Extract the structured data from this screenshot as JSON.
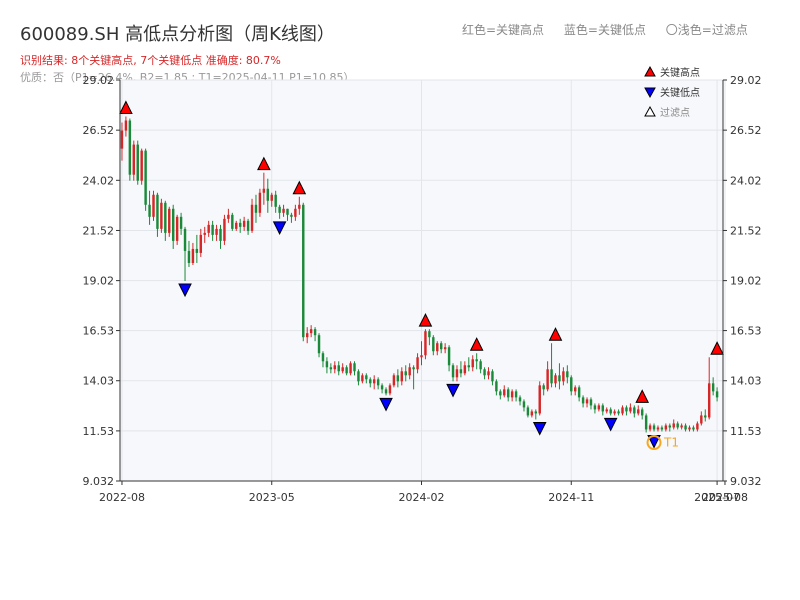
{
  "header": {
    "title": "600089.SH 高低点分析图（周K线图）",
    "legend_red": "红色=关键高点",
    "legend_blue": "蓝色=关键低点",
    "legend_light": "〇浅色=过滤点",
    "result": "识别结果: 8个关键高点, 7个关键低点   准确度: 80.7%",
    "quality": "优质：否（P1=26.4%, B2=1.85 ; T1=2025-04-11 P1=10.85）"
  },
  "colors": {
    "up": "#d62728",
    "down": "#1a8a3a",
    "high_marker": "#ff0000",
    "low_marker": "#0000ff",
    "t1": "#f5a623",
    "plot_bg": "#f7f8fb",
    "grid": "#e2e5ea"
  },
  "chart_data": {
    "type": "candlestick",
    "y_ticks": [
      "29.02",
      "26.52",
      "24.02",
      "21.52",
      "19.02",
      "16.53",
      "14.03",
      "11.53",
      "9.032"
    ],
    "ylim": [
      9.032,
      29.02
    ],
    "x_ticks": [
      "2022-08",
      "2023-05",
      "2024-02",
      "2024-11",
      "2025-07",
      "2025-08"
    ],
    "x_tick_pos": [
      0,
      38,
      76,
      114,
      151,
      153
    ],
    "inner_legend": [
      {
        "marker": "high",
        "label": "关键高点"
      },
      {
        "marker": "low",
        "label": "关键低点"
      },
      {
        "marker": "filtered",
        "label": "过滤点"
      }
    ],
    "t1_label": "T1",
    "t1_marker": {
      "index": 135,
      "value": 10.95
    },
    "high_markers": [
      {
        "index": 1,
        "value": 27.2
      },
      {
        "index": 36,
        "value": 24.4
      },
      {
        "index": 45,
        "value": 23.2
      },
      {
        "index": 77,
        "value": 16.6
      },
      {
        "index": 90,
        "value": 15.4
      },
      {
        "index": 110,
        "value": 15.9
      },
      {
        "index": 132,
        "value": 12.8
      },
      {
        "index": 151,
        "value": 15.2
      }
    ],
    "low_markers": [
      {
        "index": 16,
        "value": 19.0
      },
      {
        "index": 40,
        "value": 22.1
      },
      {
        "index": 67,
        "value": 13.3
      },
      {
        "index": 84,
        "value": 14.0
      },
      {
        "index": 106,
        "value": 12.1
      },
      {
        "index": 124,
        "value": 12.3
      },
      {
        "index": 135,
        "value": 11.45
      }
    ],
    "candles": [
      [
        25.6,
        26.5,
        25.0,
        26.9
      ],
      [
        26.5,
        27.0,
        26.2,
        27.2
      ],
      [
        27.0,
        24.3,
        24.0,
        27.1
      ],
      [
        24.3,
        25.8,
        24.0,
        26.0
      ],
      [
        25.8,
        24.0,
        23.8,
        26.0
      ],
      [
        24.0,
        25.5,
        23.8,
        25.6
      ],
      [
        25.5,
        22.8,
        22.5,
        25.6
      ],
      [
        22.8,
        22.2,
        21.8,
        23.5
      ],
      [
        22.2,
        23.3,
        22.0,
        23.5
      ],
      [
        23.3,
        21.6,
        21.2,
        23.4
      ],
      [
        21.6,
        22.9,
        21.4,
        23.1
      ],
      [
        22.9,
        21.4,
        21.0,
        23.0
      ],
      [
        21.4,
        22.6,
        21.2,
        22.7
      ],
      [
        22.6,
        21.0,
        20.6,
        22.8
      ],
      [
        21.0,
        22.2,
        20.8,
        22.3
      ],
      [
        22.2,
        21.6,
        21.3,
        22.4
      ],
      [
        21.6,
        20.5,
        19.0,
        21.7
      ],
      [
        20.5,
        19.9,
        19.7,
        21.0
      ],
      [
        19.9,
        20.6,
        19.8,
        20.9
      ],
      [
        20.6,
        20.4,
        19.9,
        21.3
      ],
      [
        20.4,
        21.3,
        20.2,
        21.6
      ],
      [
        21.3,
        21.4,
        20.9,
        21.7
      ],
      [
        21.4,
        21.8,
        21.2,
        22.0
      ],
      [
        21.8,
        21.3,
        21.0,
        22.0
      ],
      [
        21.3,
        21.6,
        21.0,
        21.8
      ],
      [
        21.6,
        21.0,
        20.6,
        21.8
      ],
      [
        21.0,
        22.1,
        20.8,
        22.3
      ],
      [
        22.1,
        22.3,
        21.9,
        22.6
      ],
      [
        22.3,
        21.6,
        21.5,
        22.4
      ],
      [
        21.6,
        21.9,
        21.5,
        22.0
      ],
      [
        21.9,
        21.7,
        21.4,
        22.1
      ],
      [
        21.7,
        22.0,
        21.5,
        22.2
      ],
      [
        22.0,
        21.5,
        21.3,
        22.1
      ],
      [
        21.5,
        22.8,
        21.4,
        23.1
      ],
      [
        22.8,
        22.4,
        21.9,
        23.3
      ],
      [
        22.4,
        23.4,
        22.2,
        23.6
      ],
      [
        23.4,
        23.6,
        22.8,
        24.4
      ],
      [
        23.6,
        23.0,
        22.4,
        24.1
      ],
      [
        23.0,
        23.3,
        22.7,
        23.4
      ],
      [
        23.3,
        22.7,
        22.4,
        23.5
      ],
      [
        22.7,
        22.4,
        22.1,
        22.8
      ],
      [
        22.4,
        22.6,
        22.2,
        22.8
      ],
      [
        22.6,
        22.3,
        22.0,
        22.6
      ],
      [
        22.3,
        22.2,
        21.9,
        22.4
      ],
      [
        22.2,
        22.6,
        22.0,
        22.8
      ],
      [
        22.6,
        22.8,
        22.3,
        23.2
      ],
      [
        22.8,
        16.2,
        16.0,
        22.9
      ],
      [
        16.2,
        16.4,
        15.9,
        16.7
      ],
      [
        16.4,
        16.6,
        16.2,
        16.8
      ],
      [
        16.6,
        16.3,
        16.0,
        16.7
      ],
      [
        16.3,
        15.4,
        15.2,
        16.4
      ],
      [
        15.4,
        15.0,
        14.7,
        15.5
      ],
      [
        15.0,
        14.7,
        14.4,
        15.2
      ],
      [
        14.7,
        14.6,
        14.4,
        14.9
      ],
      [
        14.6,
        14.8,
        14.4,
        15.0
      ],
      [
        14.8,
        14.5,
        14.3,
        15.0
      ],
      [
        14.5,
        14.7,
        14.4,
        14.9
      ],
      [
        14.7,
        14.4,
        14.3,
        14.8
      ],
      [
        14.4,
        14.9,
        14.3,
        15.0
      ],
      [
        14.9,
        14.5,
        14.3,
        15.0
      ],
      [
        14.5,
        14.0,
        13.8,
        14.6
      ],
      [
        14.0,
        14.3,
        13.9,
        14.4
      ],
      [
        14.3,
        14.1,
        13.9,
        14.4
      ],
      [
        14.1,
        13.9,
        13.7,
        14.2
      ],
      [
        13.9,
        14.1,
        13.6,
        14.3
      ],
      [
        14.1,
        13.8,
        13.6,
        14.2
      ],
      [
        13.8,
        13.6,
        13.4,
        13.9
      ],
      [
        13.6,
        13.4,
        13.3,
        13.7
      ],
      [
        13.4,
        13.8,
        13.3,
        13.9
      ],
      [
        13.8,
        14.3,
        13.7,
        14.4
      ],
      [
        14.3,
        14.0,
        13.7,
        14.6
      ],
      [
        14.0,
        14.5,
        13.8,
        14.7
      ],
      [
        14.5,
        14.3,
        14.0,
        14.8
      ],
      [
        14.3,
        14.7,
        14.1,
        14.9
      ],
      [
        14.7,
        14.6,
        13.6,
        14.8
      ],
      [
        14.6,
        15.2,
        14.4,
        15.4
      ],
      [
        15.2,
        15.3,
        14.8,
        16.0
      ],
      [
        15.3,
        16.5,
        15.1,
        16.6
      ],
      [
        16.5,
        16.2,
        15.8,
        16.6
      ],
      [
        16.2,
        15.5,
        15.3,
        16.3
      ],
      [
        15.5,
        15.9,
        15.3,
        16.0
      ],
      [
        15.9,
        15.6,
        15.4,
        16.0
      ],
      [
        15.6,
        15.7,
        15.4,
        15.9
      ],
      [
        15.7,
        14.8,
        14.5,
        15.8
      ],
      [
        14.8,
        14.2,
        14.0,
        14.9
      ],
      [
        14.2,
        14.6,
        14.0,
        14.8
      ],
      [
        14.6,
        14.4,
        14.2,
        15.0
      ],
      [
        14.4,
        14.8,
        14.3,
        15.0
      ],
      [
        14.8,
        14.7,
        14.5,
        15.2
      ],
      [
        14.7,
        15.1,
        14.5,
        15.3
      ],
      [
        15.1,
        15.0,
        14.6,
        15.4
      ],
      [
        15.0,
        14.6,
        14.4,
        15.1
      ],
      [
        14.6,
        14.3,
        14.1,
        14.7
      ],
      [
        14.3,
        14.5,
        14.1,
        14.7
      ],
      [
        14.5,
        14.0,
        13.8,
        14.6
      ],
      [
        14.0,
        13.5,
        13.3,
        14.1
      ],
      [
        13.5,
        13.3,
        13.1,
        13.6
      ],
      [
        13.3,
        13.6,
        13.2,
        13.8
      ],
      [
        13.6,
        13.2,
        13.0,
        13.7
      ],
      [
        13.2,
        13.5,
        13.0,
        13.6
      ],
      [
        13.5,
        13.2,
        13.0,
        13.6
      ],
      [
        13.2,
        13.0,
        12.8,
        13.3
      ],
      [
        13.0,
        12.7,
        12.5,
        13.1
      ],
      [
        12.7,
        12.3,
        12.2,
        12.8
      ],
      [
        12.3,
        12.5,
        12.2,
        12.6
      ],
      [
        12.5,
        12.4,
        12.1,
        12.6
      ],
      [
        12.4,
        13.8,
        12.3,
        14.0
      ],
      [
        13.8,
        13.6,
        13.3,
        13.9
      ],
      [
        13.6,
        14.6,
        13.5,
        15.0
      ],
      [
        14.6,
        13.9,
        13.7,
        15.9
      ],
      [
        13.9,
        14.3,
        13.7,
        14.4
      ],
      [
        14.3,
        14.0,
        13.6,
        14.9
      ],
      [
        14.0,
        14.5,
        13.8,
        14.7
      ],
      [
        14.5,
        14.2,
        13.9,
        14.8
      ],
      [
        14.2,
        13.5,
        13.3,
        14.3
      ],
      [
        13.5,
        13.7,
        13.3,
        13.8
      ],
      [
        13.7,
        13.2,
        13.0,
        13.8
      ],
      [
        13.2,
        12.9,
        12.7,
        13.3
      ],
      [
        12.9,
        13.1,
        12.7,
        13.2
      ],
      [
        13.1,
        12.8,
        12.6,
        13.2
      ],
      [
        12.8,
        12.6,
        12.4,
        12.9
      ],
      [
        12.6,
        12.8,
        12.5,
        12.9
      ],
      [
        12.8,
        12.5,
        12.3,
        12.9
      ],
      [
        12.5,
        12.6,
        12.4,
        12.7
      ],
      [
        12.6,
        12.4,
        12.3,
        12.7
      ],
      [
        12.4,
        12.5,
        12.3,
        12.6
      ],
      [
        12.5,
        12.4,
        12.3,
        12.6
      ],
      [
        12.4,
        12.7,
        12.3,
        12.8
      ],
      [
        12.7,
        12.5,
        12.3,
        12.8
      ],
      [
        12.5,
        12.7,
        12.4,
        12.9
      ],
      [
        12.7,
        12.4,
        12.2,
        12.8
      ],
      [
        12.4,
        12.6,
        12.3,
        12.8
      ],
      [
        12.6,
        12.3,
        12.1,
        12.7
      ],
      [
        12.3,
        11.6,
        11.45,
        12.4
      ],
      [
        11.6,
        11.8,
        11.5,
        11.9
      ],
      [
        11.8,
        11.6,
        11.5,
        11.9
      ],
      [
        11.6,
        11.7,
        11.5,
        11.8
      ],
      [
        11.7,
        11.6,
        11.5,
        11.8
      ],
      [
        11.6,
        11.8,
        11.5,
        11.9
      ],
      [
        11.8,
        11.7,
        11.5,
        11.9
      ],
      [
        11.7,
        11.9,
        11.6,
        12.1
      ],
      [
        11.9,
        11.7,
        11.6,
        12.0
      ],
      [
        11.7,
        11.8,
        11.6,
        11.9
      ],
      [
        11.8,
        11.6,
        11.5,
        11.9
      ],
      [
        11.6,
        11.7,
        11.5,
        11.8
      ],
      [
        11.7,
        11.6,
        11.5,
        11.8
      ],
      [
        11.6,
        11.9,
        11.5,
        12.0
      ],
      [
        11.9,
        12.3,
        11.8,
        12.5
      ],
      [
        12.3,
        12.2,
        12.0,
        12.6
      ],
      [
        12.2,
        13.9,
        12.1,
        15.2
      ],
      [
        13.9,
        13.5,
        13.3,
        14.2
      ],
      [
        13.5,
        13.2,
        13.0,
        13.7
      ]
    ]
  }
}
